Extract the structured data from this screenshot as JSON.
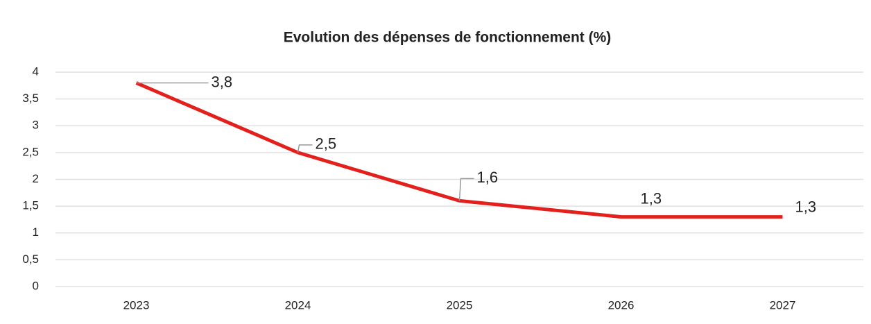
{
  "chart_data": {
    "type": "line",
    "title": "Evolution des dépenses de fonctionnement (%)",
    "categories": [
      "2023",
      "2024",
      "2025",
      "2026",
      "2027"
    ],
    "values": [
      3.8,
      2.5,
      1.6,
      1.3,
      1.3
    ],
    "value_labels": [
      "3,8",
      "2,5",
      "1,6",
      "1,3",
      "1,3"
    ],
    "color": "#e3201b",
    "ylim": [
      0,
      4
    ],
    "yticks": [
      0,
      {
        "value": 0.5,
        "label": "0,5"
      },
      1,
      {
        "value": 1.5,
        "label": "1,5"
      },
      2,
      {
        "value": 2.5,
        "label": "2,5"
      },
      3,
      {
        "value": 3.5,
        "label": "3,5"
      },
      4
    ],
    "grid": true
  }
}
